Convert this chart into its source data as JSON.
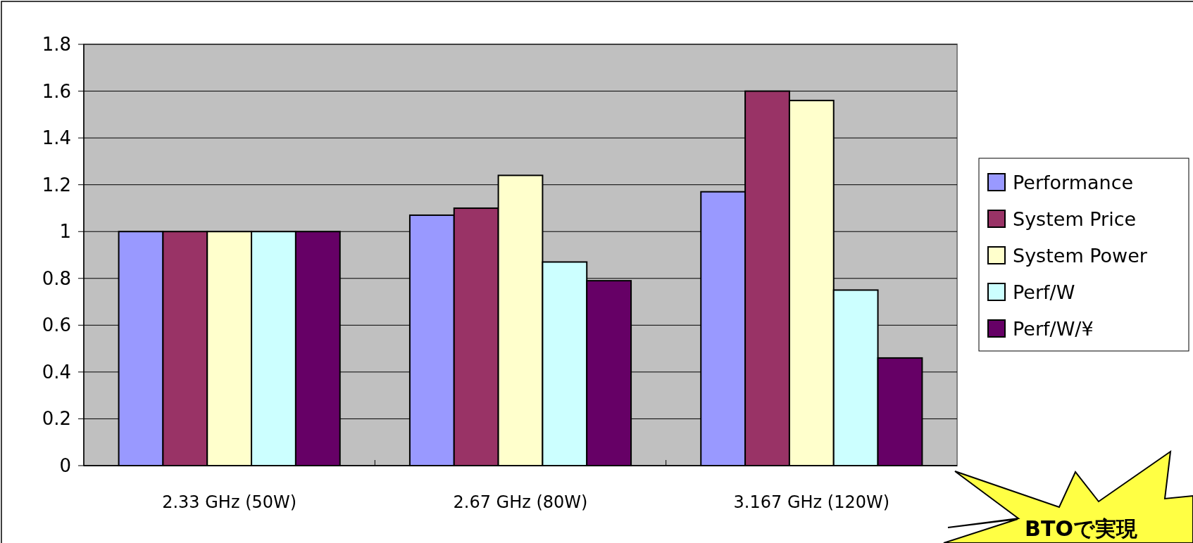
{
  "chart_data": {
    "type": "bar",
    "categories": [
      "2.33 GHz (50W)",
      "2.67 GHz (80W)",
      "3.167 GHz (120W)"
    ],
    "series": [
      {
        "name": "Performance",
        "color": "#9999ff",
        "values": [
          1,
          1.07,
          1.17
        ]
      },
      {
        "name": "System Price",
        "color": "#993366",
        "values": [
          1,
          1.1,
          1.6
        ]
      },
      {
        "name": "System Power",
        "color": "#ffffcc",
        "values": [
          1,
          1.24,
          1.56
        ]
      },
      {
        "name": "Perf/W",
        "color": "#ccffff",
        "values": [
          1,
          0.87,
          0.75
        ]
      },
      {
        "name": "Perf/W/¥",
        "color": "#660066",
        "values": [
          1,
          0.79,
          0.46
        ]
      }
    ],
    "ylim": [
      0,
      1.8
    ],
    "yticks": [
      0,
      0.2,
      0.4,
      0.6,
      0.8,
      1,
      1.2,
      1.4,
      1.6,
      1.8
    ],
    "grid": "y",
    "legend": "right",
    "annotations": [
      "BTOで実現"
    ]
  }
}
